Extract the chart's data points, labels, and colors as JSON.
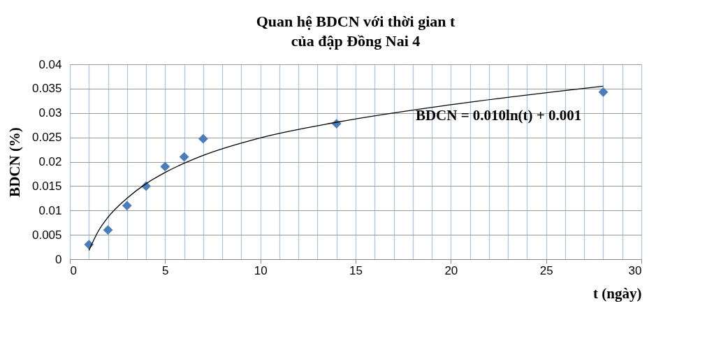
{
  "chart_data": {
    "type": "scatter",
    "title": "Quan hệ BDCN với thời gian t",
    "subtitle": "của đập Đồng Nai 4",
    "xlabel": "t (ngày)",
    "ylabel": "BDCN (%)",
    "x": [
      1,
      2,
      3,
      4,
      5,
      6,
      7,
      14,
      28
    ],
    "series": [
      {
        "color": "#4a7ebb",
        "marker": "diamond",
        "values": [
          0.003,
          0.006,
          0.011,
          0.015,
          0.019,
          0.021,
          0.0247,
          0.0278,
          0.0343
        ]
      },
      {
        "type": "line",
        "color": "#000000",
        "marker": "none",
        "line_style": "solid",
        "x": [
          1,
          1.5,
          2,
          3,
          4,
          5,
          7,
          10,
          14,
          20,
          28
        ],
        "values": [
          0.0018,
          0.0058,
          0.0086,
          0.0125,
          0.0155,
          0.0178,
          0.0213,
          0.0249,
          0.0281,
          0.0317,
          0.0355
        ]
      }
    ],
    "annotations": [
      "BDCN = 0.010ln(t) + 0.001"
    ],
    "xlim": [
      0,
      30
    ],
    "ylim": [
      0,
      0.04
    ],
    "xticks": [
      0,
      {
        "value": 1,
        "label": null
      },
      {
        "value": 2,
        "label": null
      },
      {
        "value": 3,
        "label": null
      },
      {
        "value": 4,
        "label": null
      },
      5,
      {
        "value": 6,
        "label": null
      },
      {
        "value": 7,
        "label": null
      },
      {
        "value": 8,
        "label": null
      },
      {
        "value": 9,
        "label": null
      },
      10,
      {
        "value": 11,
        "label": null
      },
      {
        "value": 12,
        "label": null
      },
      {
        "value": 13,
        "label": null
      },
      {
        "value": 14,
        "label": null
      },
      15,
      {
        "value": 16,
        "label": null
      },
      {
        "value": 17,
        "label": null
      },
      {
        "value": 18,
        "label": null
      },
      {
        "value": 19,
        "label": null
      },
      20,
      {
        "value": 21,
        "label": null
      },
      {
        "value": 22,
        "label": null
      },
      {
        "value": 23,
        "label": null
      },
      {
        "value": 24,
        "label": null
      },
      25,
      {
        "value": 26,
        "label": null
      },
      {
        "value": 27,
        "label": null
      },
      {
        "value": 28,
        "label": null
      },
      {
        "value": 29,
        "label": null
      },
      30
    ],
    "yticks": [
      0,
      0.005,
      0.01,
      0.015,
      0.02,
      0.025,
      0.03,
      0.035,
      0.04
    ],
    "grid": true
  }
}
